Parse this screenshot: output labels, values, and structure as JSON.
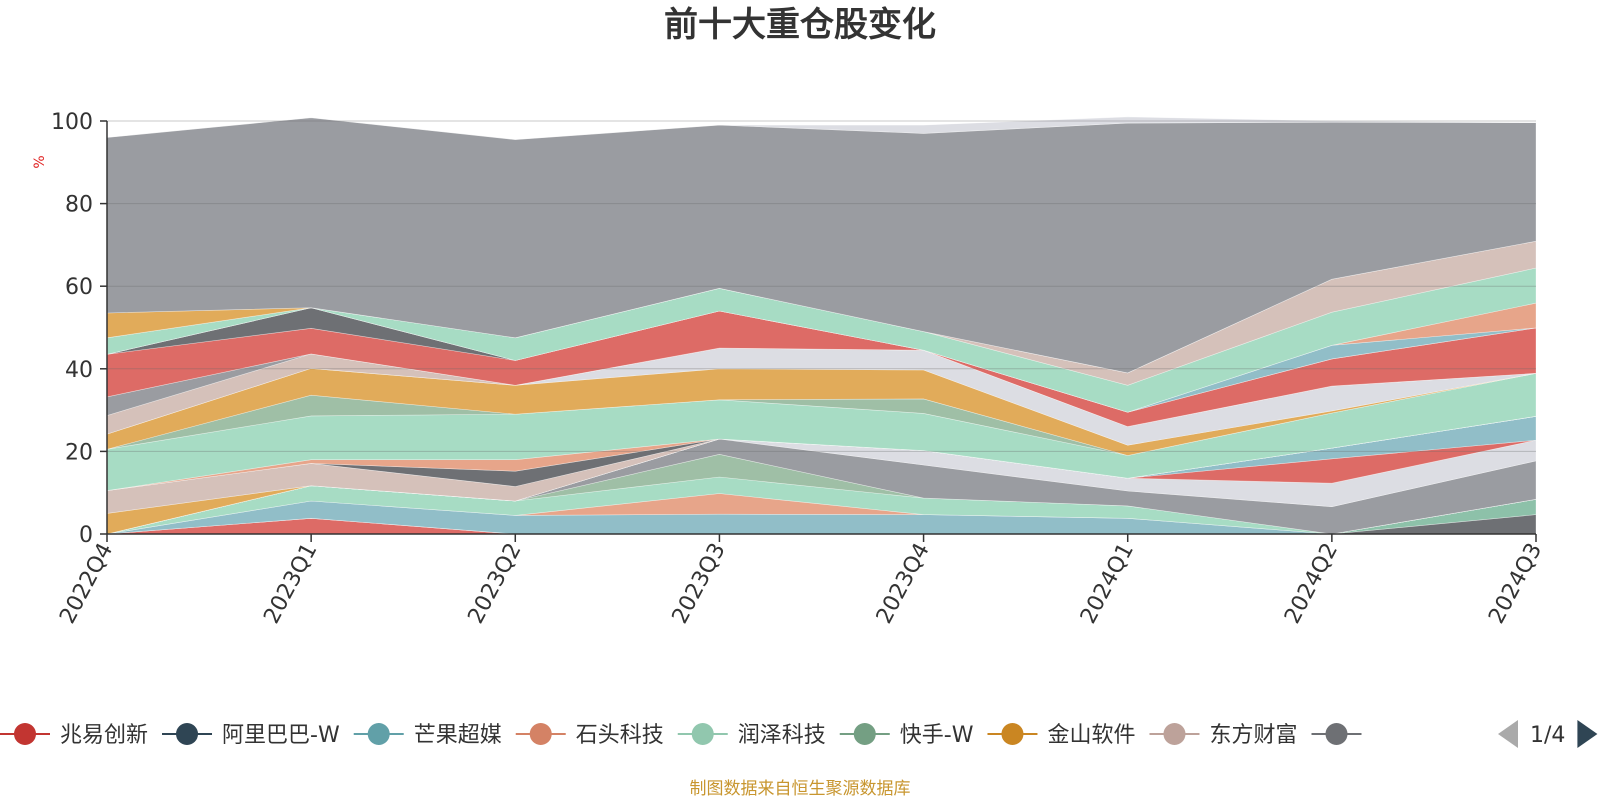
{
  "chart_data": {
    "type": "area",
    "stacked": true,
    "title": "前十大重仓股变化",
    "ylabel": "%",
    "ylim": [
      0,
      100
    ],
    "yticks": [
      0,
      20,
      40,
      60,
      80,
      100
    ],
    "grid": true,
    "legend_position": "bottom",
    "categories": [
      "2022Q4",
      "2023Q1",
      "2023Q2",
      "2023Q3",
      "2023Q4",
      "2024Q1",
      "2024Q2",
      "2024Q3"
    ],
    "series": [
      {
        "color": "#dd6b66",
        "values": [
          0,
          3.8,
          0,
          0,
          0,
          0,
          0,
          0
        ]
      },
      {
        "color": "#6e7074",
        "values": [
          0,
          0,
          0,
          0,
          0,
          0,
          0,
          4.7
        ]
      },
      {
        "color": "#8dc1a9",
        "values": [
          0,
          0,
          0,
          0,
          0,
          0,
          0,
          3.7
        ]
      },
      {
        "color": "#91bec8",
        "values": [
          0,
          4.2,
          4.5,
          4.8,
          4.7,
          3.8,
          0,
          0
        ]
      },
      {
        "color": "#e7a58a",
        "values": [
          0,
          0,
          0,
          5,
          0,
          0,
          0,
          0
        ]
      },
      {
        "color": "#a7dcc4",
        "values": [
          0,
          3.7,
          3.5,
          4,
          4,
          3,
          0,
          0
        ]
      },
      {
        "color": "#9fbfa6",
        "values": [
          0,
          0,
          0,
          5.5,
          0,
          0,
          0,
          0
        ]
      },
      {
        "color": "#9a9ca1",
        "values": [
          0,
          0,
          0,
          3.7,
          8,
          3.6,
          6.6,
          9.3
        ]
      },
      {
        "color": "#dcdde3",
        "values": [
          0,
          0,
          0,
          0,
          3.5,
          3.1,
          5.7,
          5
        ]
      },
      {
        "color": "#dd6b66",
        "values": [
          0,
          0,
          0,
          0,
          0,
          0,
          5.9,
          0
        ]
      },
      {
        "color": "#91bec8",
        "values": [
          0,
          0,
          0,
          0,
          0,
          0,
          2.6,
          5.8
        ]
      },
      {
        "color": "#e1ab5a",
        "values": [
          5,
          0,
          0,
          0,
          0,
          0,
          0,
          0
        ]
      },
      {
        "color": "#d5c1ba",
        "values": [
          5.5,
          5.4,
          3.5,
          0,
          0,
          0,
          0,
          0
        ]
      },
      {
        "color": "#6e7074",
        "values": [
          0,
          0,
          3.7,
          0,
          0,
          0,
          0,
          0
        ]
      },
      {
        "color": "#e7a58a",
        "values": [
          0,
          0.9,
          2.8,
          0,
          0,
          0,
          0,
          0
        ]
      },
      {
        "color": "#a7dcc4",
        "values": [
          10,
          10.6,
          11,
          9.5,
          9,
          5.5,
          8.5,
          10.4
        ]
      },
      {
        "color": "#9fbfa6",
        "values": [
          0,
          5,
          0,
          0,
          3.5,
          0,
          0,
          0
        ]
      },
      {
        "color": "#e1ab5a",
        "values": [
          3.7,
          6.5,
          7,
          7.5,
          7,
          2.5,
          0.5,
          0
        ]
      },
      {
        "color": "#dcdde3",
        "values": [
          0,
          0,
          0,
          5,
          4.8,
          4.5,
          6,
          0
        ]
      },
      {
        "color": "#d5c1ba",
        "values": [
          4.5,
          3.5,
          0,
          0,
          0,
          0,
          0,
          0
        ]
      },
      {
        "color": "#9a9ca1",
        "values": [
          4.5,
          0,
          0,
          0,
          0,
          0,
          0,
          0
        ]
      },
      {
        "color": "#dd6b66",
        "values": [
          10.3,
          6.2,
          6,
          9,
          0,
          3.5,
          6.6,
          11
        ]
      },
      {
        "color": "#6e7074",
        "values": [
          0,
          5,
          0,
          0,
          0,
          0,
          0,
          0
        ]
      },
      {
        "color": "#91bec8",
        "values": [
          0,
          0,
          0,
          0,
          0,
          0,
          3.3,
          0
        ]
      },
      {
        "color": "#e7a58a",
        "values": [
          0,
          0,
          0,
          0,
          0,
          0,
          0,
          6
        ]
      },
      {
        "color": "#a7dcc4",
        "values": [
          4,
          0,
          5.5,
          5.5,
          4.5,
          6.5,
          8,
          8.5
        ]
      },
      {
        "color": "#d5c1ba",
        "values": [
          0,
          0,
          0,
          0,
          0,
          3,
          8,
          6.5
        ]
      },
      {
        "color": "#e1ab5a",
        "values": [
          6,
          0,
          0,
          0,
          0,
          0,
          0,
          0
        ]
      },
      {
        "color": "#9a9ca1",
        "values": [
          42.5,
          46,
          48,
          39.5,
          48,
          60.5,
          38,
          28.7
        ]
      },
      {
        "color": "#dcdde3",
        "values": [
          0,
          0,
          0,
          0,
          2,
          1.5,
          0.3,
          0
        ]
      }
    ],
    "legend": [
      {
        "name": "兆易创新",
        "color": "#c23531"
      },
      {
        "name": "阿里巴巴-W",
        "color": "#2f4554"
      },
      {
        "name": "芒果超媒",
        "color": "#61a0a8"
      },
      {
        "name": "石头科技",
        "color": "#d48265"
      },
      {
        "name": "润泽科技",
        "color": "#91c7ae"
      },
      {
        "name": "快手-W",
        "color": "#749f83"
      },
      {
        "name": "金山软件",
        "color": "#ca8622"
      },
      {
        "name": "东方财富",
        "color": "#bda29a"
      },
      {
        "name": "",
        "color": "#6e7074"
      }
    ],
    "legend_page": "1/4",
    "source": "制图数据来自恒生聚源数据库"
  }
}
